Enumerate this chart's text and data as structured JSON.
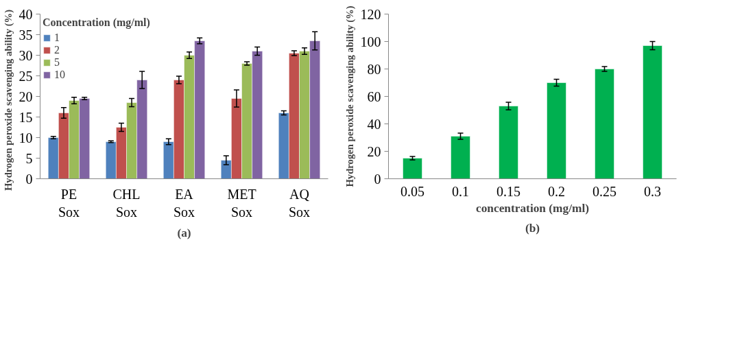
{
  "chart_data": [
    {
      "type": "bar",
      "ylabel": "Hydrogen peroxide    scavenging ability (%)",
      "legend_title": "Concentration (mg/ml)",
      "legend": "top left",
      "grid": false,
      "categories": [
        "PE Sox",
        "CHL Sox",
        "EA Sox",
        "MET Sox",
        "AQ Sox"
      ],
      "ylim": [
        0,
        40
      ],
      "yticks": [
        0,
        5,
        10,
        15,
        20,
        25,
        30,
        35,
        40
      ],
      "series": [
        {
          "name": "1",
          "color": "#4f81bd",
          "values": [
            10,
            9,
            9,
            4.5,
            16
          ],
          "errors": [
            0.3,
            0.2,
            0.7,
            1.1,
            0.5
          ]
        },
        {
          "name": "2",
          "color": "#c0504d",
          "values": [
            16,
            12.5,
            24,
            19.5,
            30.5
          ],
          "errors": [
            1.3,
            1.0,
            0.9,
            2.1,
            0.6
          ]
        },
        {
          "name": "5",
          "color": "#9bbb59",
          "values": [
            19,
            18.5,
            30,
            28,
            31
          ],
          "errors": [
            0.8,
            1.0,
            0.8,
            0.4,
            0.8
          ]
        },
        {
          "name": "10",
          "color": "#8064a2",
          "values": [
            19.5,
            24,
            33.5,
            31,
            33.5
          ],
          "errors": [
            0.3,
            2.1,
            0.7,
            1.0,
            2.2
          ]
        }
      ],
      "annotations": [
        "(a)"
      ]
    },
    {
      "type": "bar",
      "ylabel": "Hydrogen peroxide scavenging ability (%)",
      "xlabel": "concentration (mg/ml)",
      "grid": false,
      "categories": [
        "0.05",
        "0.1",
        "0.15",
        "0.2",
        "0.25",
        "0.3"
      ],
      "ylim": [
        0,
        120
      ],
      "yticks": [
        0,
        20,
        40,
        60,
        80,
        100,
        120
      ],
      "series": [
        {
          "color": "#00b050",
          "values": [
            15,
            31,
            53,
            70,
            80,
            97
          ],
          "errors": [
            1.3,
            2.2,
            2.8,
            2.5,
            1.8,
            3.0
          ]
        }
      ],
      "annotations": [
        "(b)"
      ]
    }
  ]
}
